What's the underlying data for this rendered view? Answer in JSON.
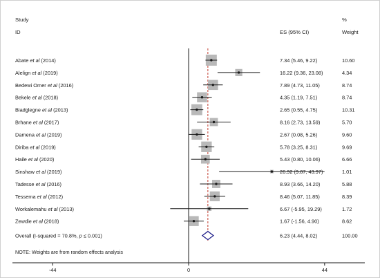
{
  "header": {
    "study": "Study",
    "id": "ID",
    "es": "ES (95% CI)",
    "pct": "%",
    "weight": "Weight"
  },
  "footnote": "NOTE: Weights are from random effects analysis",
  "chart_data": {
    "type": "forest",
    "axis": {
      "ticks": [
        -44,
        0,
        44
      ],
      "xlim": [
        -57,
        57
      ]
    },
    "reference_line": 0,
    "pooled_line": 6.23,
    "studies": [
      {
        "author": "Abate",
        "suffix": " (2014)",
        "es": 7.34,
        "lo": 5.46,
        "hi": 9.22,
        "ci_text": "7.34 (5.46, 9.22)",
        "weight": 10.6,
        "weight_text": "10.60"
      },
      {
        "author": "Alelign",
        "suffix": " (2019)",
        "es": 16.22,
        "lo": 9.36,
        "hi": 23.08,
        "ci_text": "16.22 (9.36, 23.08)",
        "weight": 4.34,
        "weight_text": "4.34"
      },
      {
        "author": "Bedewi Omer",
        "suffix": " (2016)",
        "es": 7.89,
        "lo": 4.73,
        "hi": 11.05,
        "ci_text": "7.89 (4.73, 11.05)",
        "weight": 8.74,
        "weight_text": "8.74"
      },
      {
        "author": "Bekele",
        "suffix": " (2018)",
        "es": 4.35,
        "lo": 1.19,
        "hi": 7.51,
        "ci_text": "4.35 (1.19, 7.51)",
        "weight": 8.74,
        "weight_text": "8.74"
      },
      {
        "author": "Biadglegne",
        "suffix": " (2013)",
        "es": 2.65,
        "lo": 0.55,
        "hi": 4.75,
        "ci_text": "2.65 (0.55, 4.75)",
        "weight": 10.31,
        "weight_text": "10.31"
      },
      {
        "author": "Brhane",
        "suffix": " (2017)",
        "es": 8.16,
        "lo": 2.73,
        "hi": 13.59,
        "ci_text": "8.16 (2.73, 13.59)",
        "weight": 5.7,
        "weight_text": "5.70"
      },
      {
        "author": "Damena",
        "suffix": " (2019)",
        "es": 2.67,
        "lo": 0.08,
        "hi": 5.26,
        "ci_text": "2.67 (0.08, 5.26)",
        "weight": 9.6,
        "weight_text": "9.60"
      },
      {
        "author": "Diriba",
        "suffix": " (2019)",
        "es": 5.78,
        "lo": 3.25,
        "hi": 8.31,
        "ci_text": "5.78 (3.25, 8.31)",
        "weight": 9.69,
        "weight_text": "9.69"
      },
      {
        "author": "Haile",
        "suffix": " (2020)",
        "es": 5.43,
        "lo": 0.8,
        "hi": 10.06,
        "ci_text": "5.43 (0.80, 10.06)",
        "weight": 6.66,
        "weight_text": "6.66"
      },
      {
        "author": "Sinshaw",
        "suffix": " (2019)",
        "es": 26.92,
        "lo": 9.87,
        "hi": 43.97,
        "ci_text": "26.92 (9.87, 43.97)",
        "weight": 1.01,
        "weight_text": "1.01"
      },
      {
        "author": "Tadesse",
        "suffix": " (2016)",
        "es": 8.93,
        "lo": 3.66,
        "hi": 14.2,
        "ci_text": "8.93 (3.66, 14.20)",
        "weight": 5.88,
        "weight_text": "5.88"
      },
      {
        "author": "Tessema",
        "suffix": " (2012)",
        "es": 8.46,
        "lo": 5.07,
        "hi": 11.85,
        "ci_text": "8.46 (5.07, 11.85)",
        "weight": 8.39,
        "weight_text": "8.39"
      },
      {
        "author": "Workalemahu",
        "suffix": " (2013)",
        "es": 6.67,
        "lo": -5.95,
        "hi": 19.29,
        "ci_text": "6.67 (-5.95, 19.29)",
        "weight": 1.72,
        "weight_text": "1.72"
      },
      {
        "author": "Zewdie",
        "suffix": " (2018)",
        "es": 1.67,
        "lo": -1.56,
        "hi": 4.9,
        "ci_text": "1.67 (-1.56, 4.90)",
        "weight": 8.62,
        "weight_text": "8.62"
      }
    ],
    "overall": {
      "label_prefix": "Overall  (I-squared = 70.8%, ",
      "p_symbol": "p",
      "label_suffix": " ≤ 0.001)",
      "es": 6.23,
      "lo": 4.44,
      "hi": 8.02,
      "ci_text": "6.23 (4.44, 8.02)",
      "weight_text": "100.00"
    },
    "et_al": "et al"
  }
}
